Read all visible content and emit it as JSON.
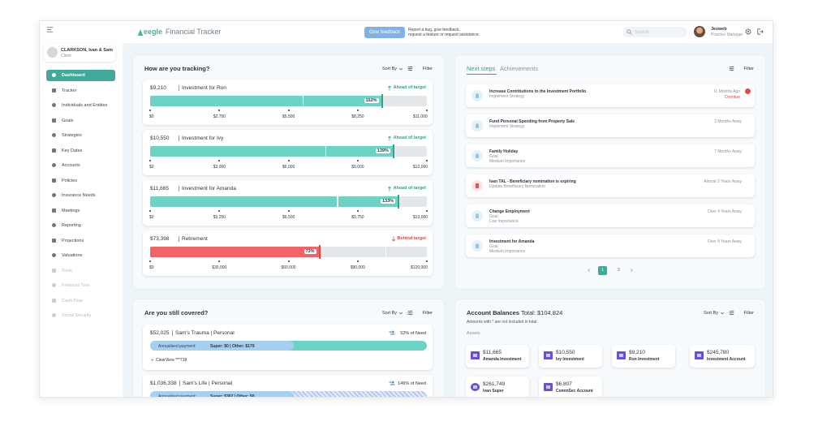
{
  "header": {
    "logo": "eegle",
    "app_title": "Financial Tracker",
    "feedback_button": "Give feedback",
    "feedback_note": [
      "Report a bug, give feedback,",
      "request a feature or request assistance."
    ],
    "search_placeholder": "Search",
    "user_name": "Jezweb",
    "user_role": "Practice Manager"
  },
  "sidebar": {
    "client_name": "CLARKSON, Ivan & Sam",
    "client_role": "Client",
    "nav": [
      "Dashboard",
      "Tracker",
      "Individuals and Entities",
      "Goals",
      "Strategies",
      "Key Dates",
      "Accounts",
      "Policies",
      "Insurance Needs",
      "Meetings",
      "Reporting",
      "Projections",
      "Valuations",
      "Tools",
      "Financial Tree",
      "Cash Flow",
      "Social Security"
    ]
  },
  "tracking": {
    "title": "How are you tracking?",
    "sort": "Sort By",
    "filter": "Filter",
    "items": [
      {
        "amount": {
          "value": 9210,
          "label": "$9,210"
        },
        "name": "Investment for Ron",
        "status": "Ahead of target",
        "color": "#6dd3c4",
        "status_color": "#2aa58f",
        "progress": {
          "value": 152,
          "label": "152%"
        },
        "ticks": [
          {
            "value": 0,
            "label": "$0"
          },
          {
            "value": 2750,
            "label": "$2,750"
          },
          {
            "value": 5500,
            "label": "$5,500"
          },
          {
            "value": 8250,
            "label": "$8,250"
          },
          {
            "value": 11000,
            "label": "$11,000"
          }
        ]
      },
      {
        "amount": {
          "value": 10550,
          "label": "$10,550"
        },
        "name": "Investment for Ivy",
        "status": "Ahead of target",
        "color": "#6dd3c4",
        "status_color": "#2aa58f",
        "progress": {
          "value": 139,
          "label": "139%"
        },
        "ticks": [
          {
            "value": 0,
            "label": "$0"
          },
          {
            "value": 3000,
            "label": "$3,000"
          },
          {
            "value": 6000,
            "label": "$6,000"
          },
          {
            "value": 9000,
            "label": "$9,000"
          },
          {
            "value": 12000,
            "label": "$12,000"
          }
        ]
      },
      {
        "amount": {
          "value": 11665,
          "label": "$11,665"
        },
        "name": "Investment for Amanda",
        "status": "Ahead of target",
        "color": "#6dd3c4",
        "status_color": "#2aa58f",
        "progress": {
          "value": 133,
          "label": "133%"
        },
        "ticks": [
          {
            "value": 0,
            "label": "$0"
          },
          {
            "value": 3250,
            "label": "$3,250"
          },
          {
            "value": 6500,
            "label": "$6,500"
          },
          {
            "value": 9750,
            "label": "$9,750"
          },
          {
            "value": 13000,
            "label": "$13,000"
          }
        ]
      },
      {
        "amount": {
          "value": 73398,
          "label": "$73,398"
        },
        "name": "Retirement",
        "status": "Behind target",
        "color": "#f26363",
        "status_color": "#e04848",
        "progress": {
          "value": 72,
          "label": "72%"
        },
        "ticks": [
          {
            "value": 0,
            "label": "$0"
          },
          {
            "value": 30000,
            "label": "$30,000"
          },
          {
            "value": 60000,
            "label": "$60,000"
          },
          {
            "value": 90000,
            "label": "$90,000"
          },
          {
            "value": 120000,
            "label": "$120,000"
          }
        ]
      }
    ]
  },
  "covered": {
    "title": "Are you still covered?",
    "sort": "Sort By",
    "filter": "Filter",
    "items": [
      {
        "amount": "$52,025",
        "name": "Sam's Trauma | Personal",
        "need": "52% of Need",
        "payment_label": "Annualised payment:",
        "payment": "Super: $0 | Other: $179",
        "policy": "ClearView ***718"
      },
      {
        "amount": "$1,036,338",
        "name": "Sam's Life | Personal",
        "need": "149% of Need",
        "payment_label": "Annualised payment:",
        "payment": "Super: $362 | Other: $0"
      }
    ]
  },
  "next_steps": {
    "tabs": [
      "Next steps",
      "Achievements"
    ],
    "filter": "Filter",
    "items": [
      {
        "title": "Increase Contributions to the Investment Portfolio",
        "lines": [
          "Implement Strategy"
        ],
        "time": "11 Months Ago",
        "status": "Overdue"
      },
      {
        "title": "Fund Personal Spending from Property Sale",
        "lines": [
          "Implement Strategy"
        ],
        "time": "2 Months Away"
      },
      {
        "title": "Family Holiday",
        "lines": [
          "Goal",
          "Medium Importance"
        ],
        "time": "7 Months Away"
      },
      {
        "title": "Ivan TAL - Beneficiary nomination is expiring",
        "lines": [
          "Update Beneficiary Nomination"
        ],
        "time": "Almost 2 Years Away"
      },
      {
        "title": "Change Employment",
        "lines": [
          "Goal",
          "Low Importance"
        ],
        "time": "Over 4 Years Away"
      },
      {
        "title": "Investment for Amanda",
        "lines": [
          "Goal",
          "Medium Importance"
        ],
        "time": "Over 8 Years Away"
      }
    ],
    "pages": [
      "1",
      "2"
    ]
  },
  "accounts": {
    "title": "Account Balances",
    "total": "Total: $104,824",
    "note": "Amounts with * are not included in total",
    "section": "Assets",
    "sort": "Sort By",
    "filter": "Filter",
    "items": [
      {
        "amount": "$11,665",
        "name": "Amanda Investment"
      },
      {
        "amount": "$10,550",
        "name": "Ivy Investment"
      },
      {
        "amount": "$9,210",
        "name": "Ron Investment"
      },
      {
        "amount": "$245,780",
        "name": "Investment Account"
      },
      {
        "amount": "$261,749",
        "name": "Ivan Super"
      },
      {
        "amount": "$6,807",
        "name": "CommSec Account"
      }
    ]
  }
}
